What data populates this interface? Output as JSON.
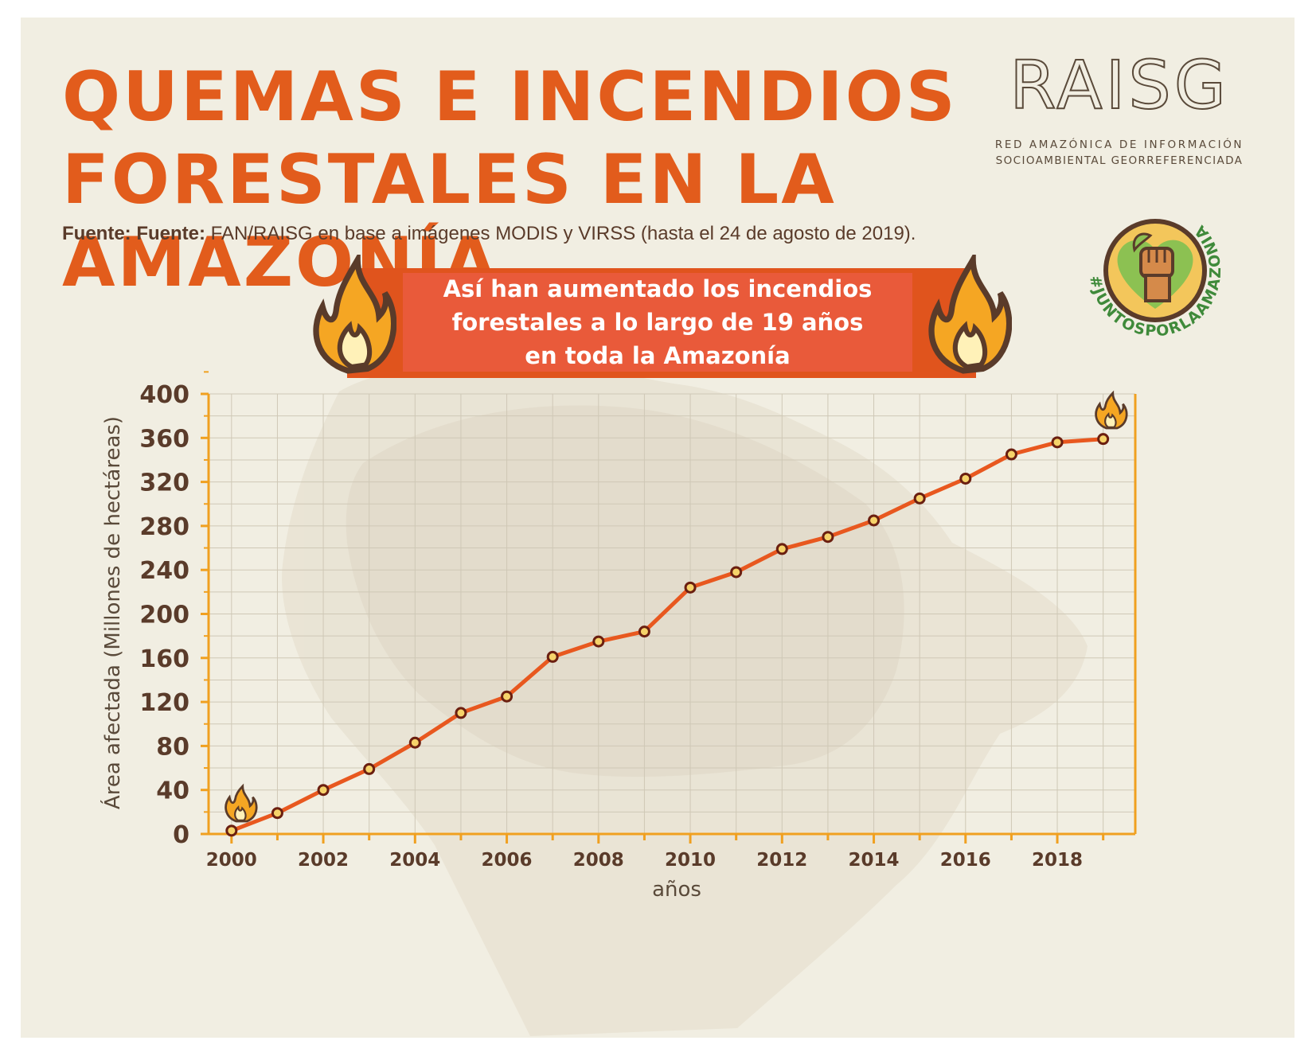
{
  "header": {
    "title_line1": "QUEMAS E INCENDIOS",
    "title_line2": "FORESTALES EN LA AMAZONÍA",
    "source_label": "Fuente: Fuente:",
    "source_text": "FAN/RAISG en base a imágenes MODIS y VIRSS (hasta el 24 de agosto de 2019)."
  },
  "logo": {
    "name": "RAISG",
    "line1": "RED AMAZÓNICA DE INFORMACIÓN",
    "line2": "SOCIOAMBIENTAL GEORREFERENCIADA"
  },
  "badge": {
    "hashtag": "#JUNTOSPORLAAMAZONIA"
  },
  "banner": {
    "line1": "Así han aumentado los incendios",
    "line2": "forestales a lo largo de 19 años",
    "line3": "en toda la Amazonía"
  },
  "colors": {
    "accent": "#e25c1c",
    "line": "#e8581f",
    "axis": "#f0a020",
    "text": "#5a3b2a",
    "background": "#f1eee2"
  },
  "icons": [
    "flame-icon",
    "map-icon",
    "fist-icon",
    "heart-icon"
  ],
  "chart_data": {
    "type": "line",
    "title": "Así han aumentado los incendios forestales a lo largo de 19 años en toda la Amazonía",
    "xlabel": "años",
    "ylabel": "Área afectada (Millones de hectáreas)",
    "x": [
      2000,
      2001,
      2002,
      2003,
      2004,
      2005,
      2006,
      2007,
      2008,
      2009,
      2010,
      2011,
      2012,
      2013,
      2014,
      2015,
      2016,
      2017,
      2018,
      2019
    ],
    "values": [
      3,
      19,
      40,
      59,
      83,
      110,
      125,
      161,
      175,
      184,
      224,
      238,
      259,
      270,
      285,
      305,
      323,
      345,
      356,
      359
    ],
    "ylim": [
      0,
      400
    ],
    "xlim": [
      1999.5,
      2019.7
    ],
    "yticks": [
      0,
      40,
      80,
      120,
      160,
      200,
      240,
      280,
      320,
      360,
      400
    ],
    "xticks": [
      2000,
      2002,
      2004,
      2006,
      2008,
      2010,
      2012,
      2014,
      2016,
      2018
    ],
    "grid": true,
    "legend": "none"
  }
}
